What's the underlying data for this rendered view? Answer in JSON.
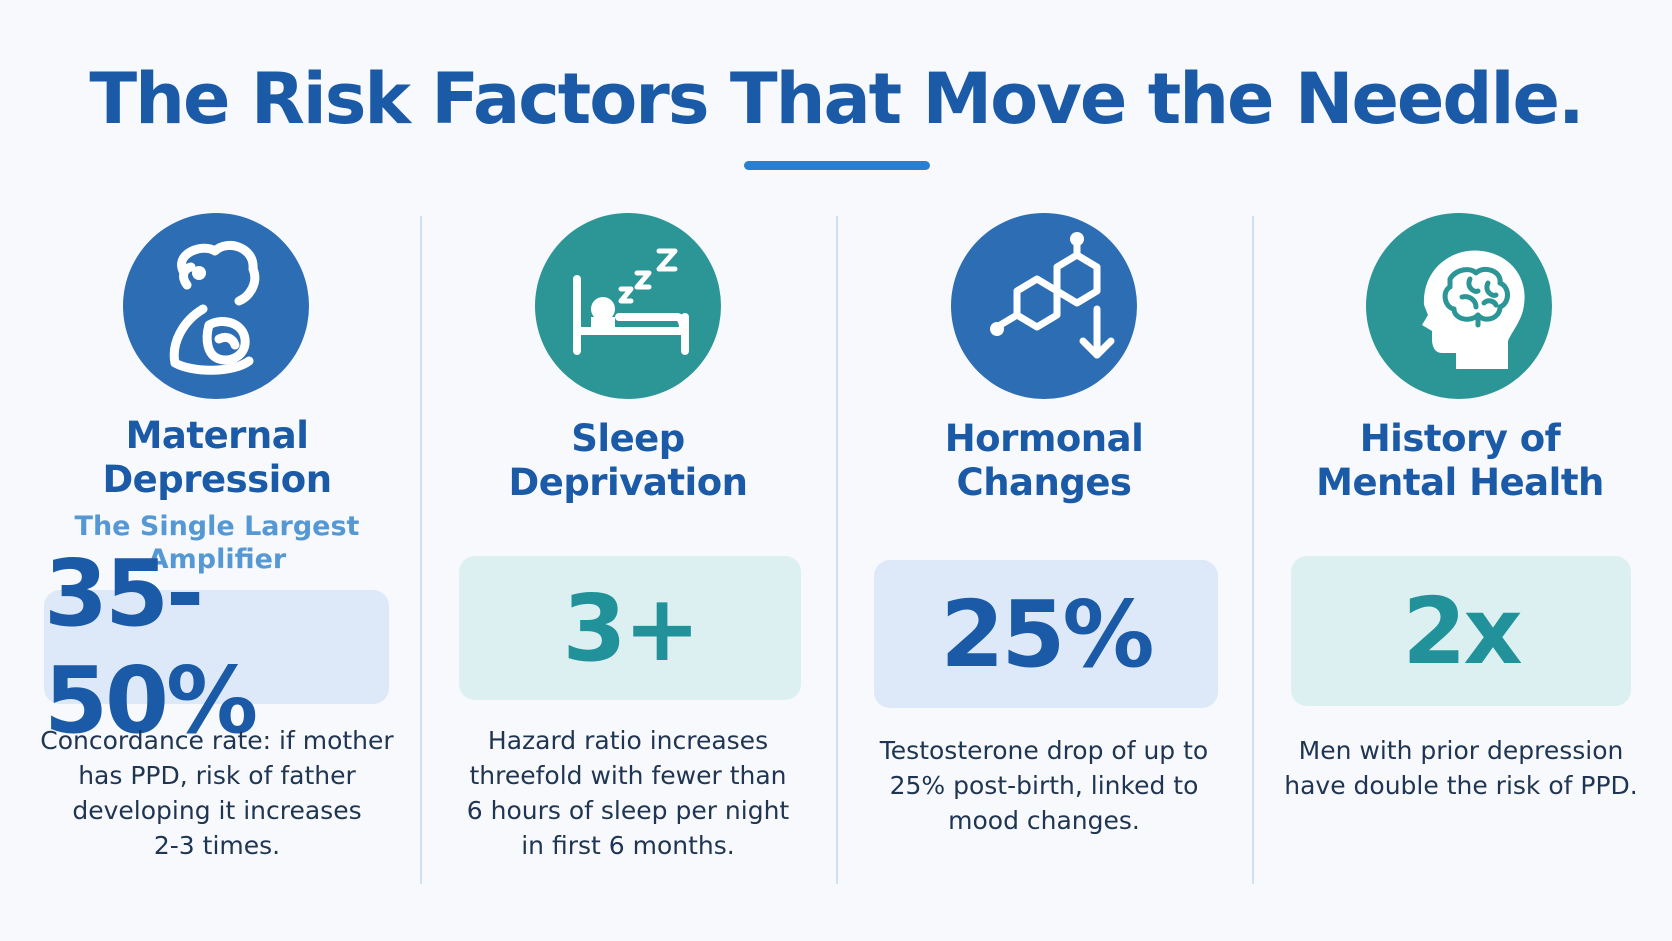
{
  "title": "The Risk Factors That Move the Needle.",
  "colors": {
    "title": "#1a5aa6",
    "accent_blue": "#2c6db3",
    "accent_teal": "#2c9596",
    "subheading": "#5598d4",
    "body_text": "#1f3552"
  },
  "cards": [
    {
      "icon": "mother-baby-icon",
      "heading_line1": "Maternal",
      "heading_line2": "Depression",
      "subheading_line1": "The Single Largest",
      "subheading_line2": "Amplifier",
      "stat": "35-50%",
      "desc_lines": [
        "Concordance rate: if mother",
        "has PPD, risk of father",
        "developing it increases",
        "2-3 times."
      ]
    },
    {
      "icon": "sleep-bed-icon",
      "heading_line1": "Sleep",
      "heading_line2": "Deprivation",
      "stat": "3+",
      "desc_lines": [
        "Hazard ratio increases",
        "threefold with fewer than",
        "6 hours of sleep per night",
        "in first 6 months."
      ]
    },
    {
      "icon": "hormone-molecule-icon",
      "heading_line1": "Hormonal",
      "heading_line2": "Changes",
      "stat": "25%",
      "desc_lines": [
        "Testosterone drop of up to",
        "25% post-birth, linked to",
        "mood changes."
      ]
    },
    {
      "icon": "brain-head-icon",
      "heading_line1": "History of",
      "heading_line2": "Mental Health",
      "stat": "2x",
      "desc_lines": [
        "Men with prior depression",
        "have double the risk of PPD."
      ]
    }
  ]
}
